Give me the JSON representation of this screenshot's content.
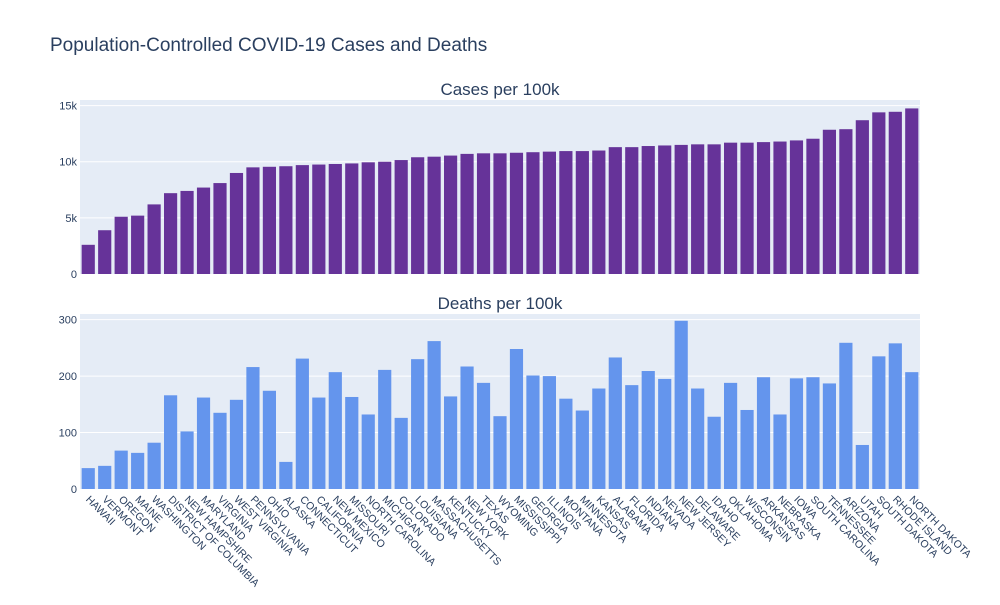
{
  "title": "Population-Controlled COVID-19 Cases and Deaths",
  "colors": {
    "cases": "#663399",
    "deaths": "#6495ed",
    "plot_bg": "#e5ecf6",
    "grid": "#ffffff",
    "text": "#2a3f5f"
  },
  "chart_data": [
    {
      "type": "bar",
      "title": "Cases per 100k",
      "xlabel": "",
      "ylabel": "",
      "ylim": [
        0,
        15500
      ],
      "yticks": [
        0,
        5000,
        10000,
        15000
      ],
      "ytick_labels": [
        "0",
        "5k",
        "10k",
        "15k"
      ],
      "grid": true,
      "categories": [
        "HAWAII",
        "VERMONT",
        "OREGON",
        "MAINE",
        "WASHINGTON",
        "DISTRICT OF COLUMBIA",
        "NEW HAMPSHIRE",
        "MARYLAND",
        "VIRGINIA",
        "WEST VIRGINIA",
        "PENNSYLVANIA",
        "OHIO",
        "ALASKA",
        "CONNECTICUT",
        "CALIFORNIA",
        "NEW MEXICO",
        "MISSOURI",
        "NORTH CAROLINA",
        "MICHIGAN",
        "COLORADO",
        "LOUISIANA",
        "MASSACHUSETTS",
        "KENTUCKY",
        "NEW YORK",
        "TEXAS",
        "WYOMING",
        "MISSISSIPPI",
        "GEORGIA",
        "ILLINOIS",
        "MONTANA",
        "MINNESOTA",
        "KANSAS",
        "ALABAMA",
        "FLORIDA",
        "INDIANA",
        "NEVADA",
        "NEW JERSEY",
        "DELAWARE",
        "IDAHO",
        "OKLAHOMA",
        "WISCONSIN",
        "ARKANSAS",
        "NEBRASKA",
        "IOWA",
        "SOUTH CAROLINA",
        "TENNESSEE",
        "ARIZONA",
        "UTAH",
        "SOUTH DAKOTA",
        "RHODE ISLAND",
        "NORTH DAKOTA"
      ],
      "values": [
        2600,
        3900,
        5100,
        5200,
        6200,
        7200,
        7400,
        7700,
        8100,
        9000,
        9500,
        9550,
        9600,
        9700,
        9750,
        9800,
        9850,
        9950,
        10000,
        10150,
        10400,
        10450,
        10550,
        10700,
        10750,
        10750,
        10800,
        10850,
        10900,
        10950,
        10950,
        11000,
        11300,
        11300,
        11400,
        11450,
        11500,
        11550,
        11550,
        11700,
        11700,
        11750,
        11800,
        11900,
        12050,
        12850,
        12900,
        13700,
        14400,
        14450,
        14750
      ]
    },
    {
      "type": "bar",
      "title": "Deaths per 100k",
      "xlabel": "",
      "ylabel": "",
      "ylim": [
        0,
        310
      ],
      "yticks": [
        0,
        100,
        200,
        300
      ],
      "ytick_labels": [
        "0",
        "100",
        "200",
        "300"
      ],
      "grid": true,
      "categories": [
        "HAWAII",
        "VERMONT",
        "OREGON",
        "MAINE",
        "WASHINGTON",
        "DISTRICT OF COLUMBIA",
        "NEW HAMPSHIRE",
        "MARYLAND",
        "VIRGINIA",
        "WEST VIRGINIA",
        "PENNSYLVANIA",
        "OHIO",
        "ALASKA",
        "CONNECTICUT",
        "CALIFORNIA",
        "NEW MEXICO",
        "MISSOURI",
        "NORTH CAROLINA",
        "MICHIGAN",
        "COLORADO",
        "LOUISIANA",
        "MASSACHUSETTS",
        "KENTUCKY",
        "NEW YORK",
        "TEXAS",
        "WYOMING",
        "MISSISSIPPI",
        "GEORGIA",
        "ILLINOIS",
        "MONTANA",
        "MINNESOTA",
        "KANSAS",
        "ALABAMA",
        "FLORIDA",
        "INDIANA",
        "NEVADA",
        "NEW JERSEY",
        "DELAWARE",
        "IDAHO",
        "OKLAHOMA",
        "WISCONSIN",
        "ARKANSAS",
        "NEBRASKA",
        "IOWA",
        "SOUTH CAROLINA",
        "TENNESSEE",
        "ARIZONA",
        "UTAH",
        "SOUTH DAKOTA",
        "RHODE ISLAND",
        "NORTH DAKOTA"
      ],
      "values": [
        37,
        41,
        68,
        64,
        82,
        166,
        102,
        162,
        135,
        158,
        216,
        174,
        48,
        231,
        162,
        207,
        163,
        132,
        211,
        126,
        230,
        262,
        164,
        217,
        188,
        129,
        248,
        201,
        200,
        160,
        139,
        178,
        233,
        184,
        209,
        195,
        298,
        178,
        128,
        188,
        140,
        198,
        132,
        196,
        198,
        187,
        259,
        78,
        235,
        258,
        207
      ]
    }
  ]
}
